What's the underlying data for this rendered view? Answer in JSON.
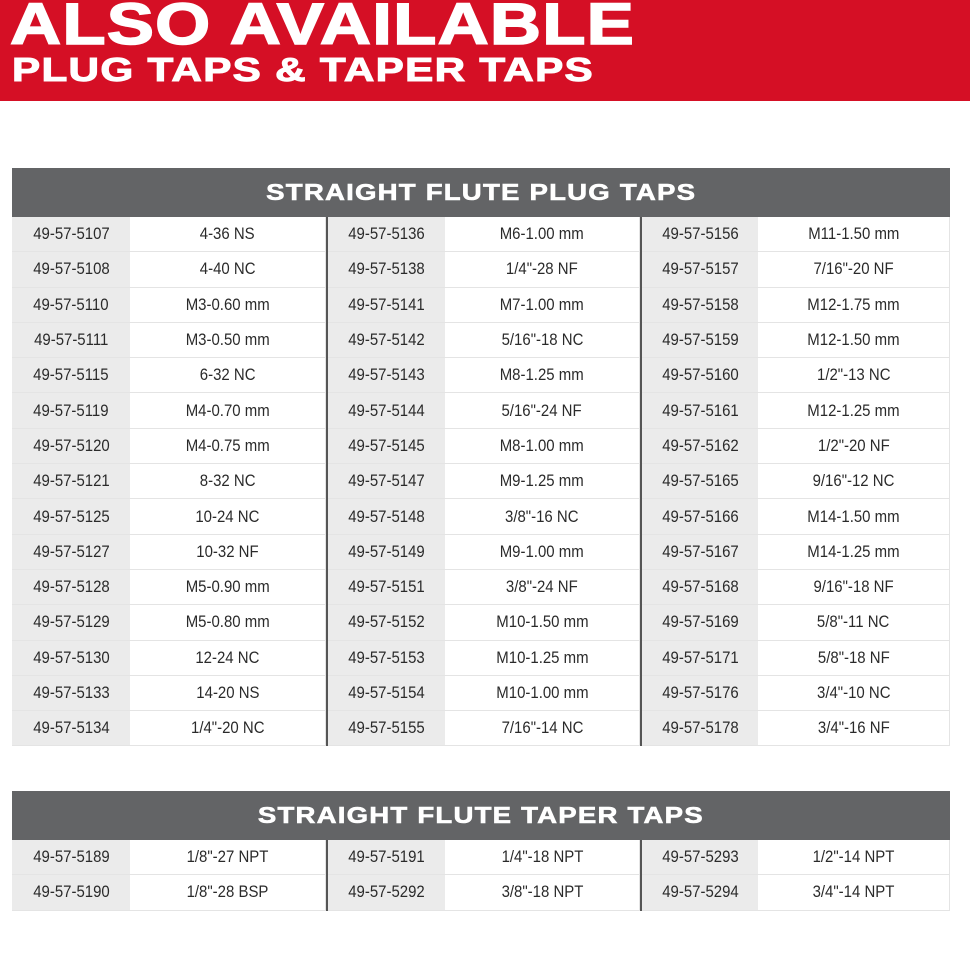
{
  "banner": {
    "title": "ALSO AVAILABLE",
    "subtitle": "PLUG TAPS & TAPER TAPS",
    "color": "#d50f25"
  },
  "tables": [
    {
      "title": "STRAIGHT FLUTE PLUG TAPS",
      "rows": [
        [
          [
            "49-57-5107",
            "4-36 NS"
          ],
          [
            "49-57-5136",
            "M6-1.00 mm"
          ],
          [
            "49-57-5156",
            "M11-1.50 mm"
          ]
        ],
        [
          [
            "49-57-5108",
            "4-40 NC"
          ],
          [
            "49-57-5138",
            "1/4\"-28 NF"
          ],
          [
            "49-57-5157",
            "7/16\"-20 NF"
          ]
        ],
        [
          [
            "49-57-5110",
            "M3-0.60 mm"
          ],
          [
            "49-57-5141",
            "M7-1.00 mm"
          ],
          [
            "49-57-5158",
            "M12-1.75 mm"
          ]
        ],
        [
          [
            "49-57-5111",
            "M3-0.50 mm"
          ],
          [
            "49-57-5142",
            "5/16\"-18 NC"
          ],
          [
            "49-57-5159",
            "M12-1.50 mm"
          ]
        ],
        [
          [
            "49-57-5115",
            "6-32 NC"
          ],
          [
            "49-57-5143",
            "M8-1.25 mm"
          ],
          [
            "49-57-5160",
            "1/2\"-13 NC"
          ]
        ],
        [
          [
            "49-57-5119",
            "M4-0.70 mm"
          ],
          [
            "49-57-5144",
            "5/16\"-24 NF"
          ],
          [
            "49-57-5161",
            "M12-1.25 mm"
          ]
        ],
        [
          [
            "49-57-5120",
            "M4-0.75 mm"
          ],
          [
            "49-57-5145",
            "M8-1.00 mm"
          ],
          [
            "49-57-5162",
            "1/2\"-20 NF"
          ]
        ],
        [
          [
            "49-57-5121",
            "8-32 NC"
          ],
          [
            "49-57-5147",
            "M9-1.25 mm"
          ],
          [
            "49-57-5165",
            "9/16\"-12 NC"
          ]
        ],
        [
          [
            "49-57-5125",
            "10-24 NC"
          ],
          [
            "49-57-5148",
            "3/8\"-16 NC"
          ],
          [
            "49-57-5166",
            "M14-1.50 mm"
          ]
        ],
        [
          [
            "49-57-5127",
            "10-32 NF"
          ],
          [
            "49-57-5149",
            "M9-1.00 mm"
          ],
          [
            "49-57-5167",
            "M14-1.25 mm"
          ]
        ],
        [
          [
            "49-57-5128",
            "M5-0.90 mm"
          ],
          [
            "49-57-5151",
            "3/8\"-24 NF"
          ],
          [
            "49-57-5168",
            "9/16\"-18 NF"
          ]
        ],
        [
          [
            "49-57-5129",
            "M5-0.80 mm"
          ],
          [
            "49-57-5152",
            "M10-1.50 mm"
          ],
          [
            "49-57-5169",
            "5/8\"-11 NC"
          ]
        ],
        [
          [
            "49-57-5130",
            "12-24 NC"
          ],
          [
            "49-57-5153",
            "M10-1.25 mm"
          ],
          [
            "49-57-5171",
            "5/8\"-18 NF"
          ]
        ],
        [
          [
            "49-57-5133",
            "14-20 NS"
          ],
          [
            "49-57-5154",
            "M10-1.00 mm"
          ],
          [
            "49-57-5176",
            "3/4\"-10 NC"
          ]
        ],
        [
          [
            "49-57-5134",
            "1/4\"-20 NC"
          ],
          [
            "49-57-5155",
            "7/16\"-14 NC"
          ],
          [
            "49-57-5178",
            "3/4\"-16 NF"
          ]
        ]
      ]
    },
    {
      "title": "STRAIGHT FLUTE TAPER TAPS",
      "rows": [
        [
          [
            "49-57-5189",
            "1/8\"-27 NPT"
          ],
          [
            "49-57-5191",
            "1/4\"-18 NPT"
          ],
          [
            "49-57-5293",
            "1/2\"-14 NPT"
          ]
        ],
        [
          [
            "49-57-5190",
            "1/8\"-28 BSP"
          ],
          [
            "49-57-5292",
            "3/8\"-18 NPT"
          ],
          [
            "49-57-5294",
            "3/4\"-14 NPT"
          ]
        ]
      ]
    }
  ]
}
